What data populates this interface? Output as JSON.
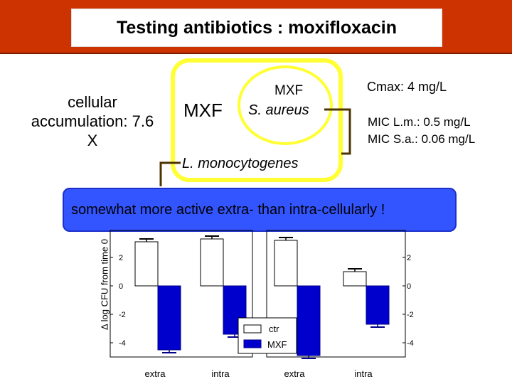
{
  "title": "Testing antibiotics : moxifloxacin",
  "diagram": {
    "cellular_accumulation": "cellular accumulation: 7.6 X",
    "mxf_outside": "MXF",
    "mxf_inside": "MXF",
    "s_aureus": "S. aureus",
    "l_monocytogenes": "L. monocytogenes",
    "cmax": "Cmax: 4 mg/L",
    "mic_lm": "MIC L.m.: 0.5 mg/L",
    "mic_sa": "MIC S.a.: 0.06 mg/L",
    "outline_color": "#ffff33",
    "line_color": "#4d3300"
  },
  "callout": "somewhat more active extra- than intra-cellularly !",
  "colors": {
    "banner": "#cc3300",
    "callout": "#3355ff",
    "ctr": "#ffffff",
    "mxf": "#0000cc"
  },
  "chart_data": [
    {
      "type": "bar",
      "ylabel": "Δ log CFU from time 0",
      "categories": [
        "extra",
        "intra"
      ],
      "series": [
        {
          "name": "ctr",
          "values": [
            3.1,
            3.3
          ]
        },
        {
          "name": "MXF",
          "values": [
            -4.5,
            -3.4
          ]
        }
      ],
      "ylim": [
        -5,
        4
      ],
      "yticks": [
        2,
        0,
        -2,
        -4
      ],
      "error_bars": true
    },
    {
      "type": "bar",
      "categories": [
        "extra",
        "intra"
      ],
      "series": [
        {
          "name": "ctr",
          "values": [
            3.2,
            1.0
          ]
        },
        {
          "name": "MXF",
          "values": [
            -4.9,
            -2.7
          ]
        }
      ],
      "ylim": [
        -5,
        4
      ],
      "yticks": [
        2,
        0,
        -2,
        -4
      ],
      "error_bars": true
    }
  ],
  "legend": {
    "ctr": "ctr",
    "mxf": "MXF"
  }
}
